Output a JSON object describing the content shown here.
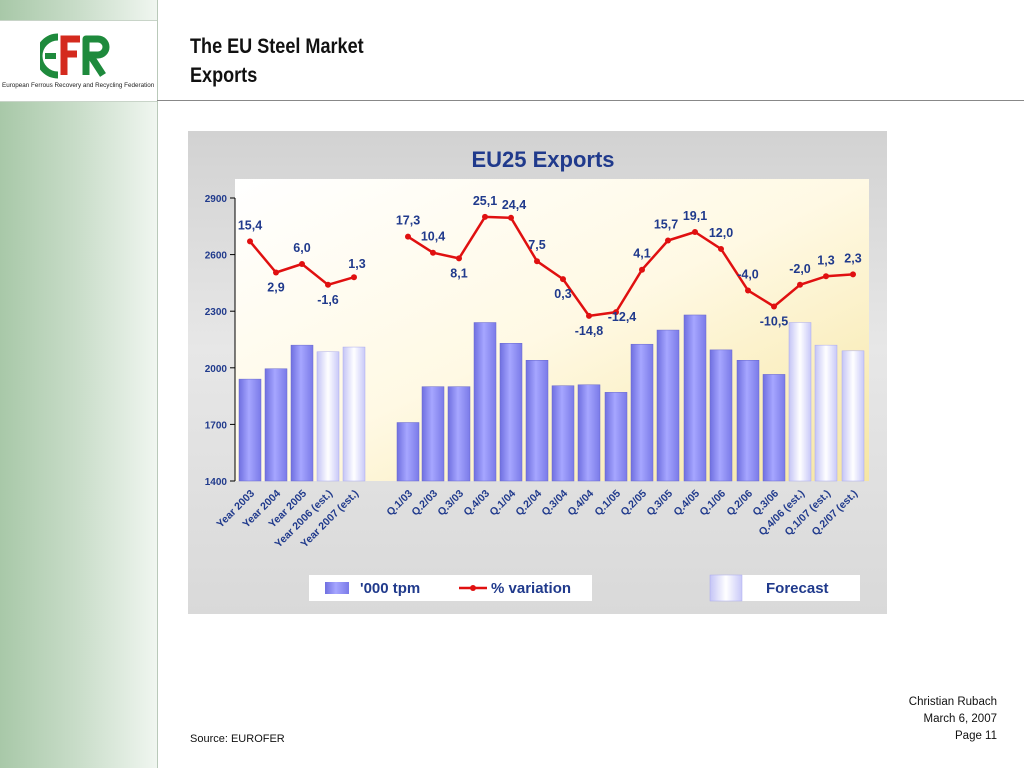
{
  "logo": {
    "mark": "EFR",
    "full_name": "European Ferrous Recovery and Recycling Federation",
    "colors": {
      "green": "#1e8a3c",
      "red": "#d42a1e"
    }
  },
  "slide": {
    "title_line1": "The EU Steel Market",
    "title_line2": "Exports"
  },
  "footer": {
    "source": "Source: EUROFER",
    "author": "Christian Rubach",
    "date": "March 6, 2007",
    "page": "Page 11"
  },
  "chart_data": {
    "type": "bar",
    "title": "EU25 Exports",
    "xlabel": "",
    "ylabel": "",
    "ylim": [
      1400,
      2900
    ],
    "yticks": [
      1400,
      1700,
      2000,
      2300,
      2600,
      2900
    ],
    "grid": false,
    "categories": [
      "Year 2003",
      "Year 2004",
      "Year 2005",
      "Year 2006 (est.)",
      "Year 2007 (est.)",
      "Q.1/03",
      "Q.2/03",
      "Q.3/03",
      "Q.4/03",
      "Q.1/04",
      "Q.2/04",
      "Q.3/04",
      "Q.4/04",
      "Q.1/05",
      "Q.2/05",
      "Q.3/05",
      "Q.4/05",
      "Q.1/06",
      "Q.2/06",
      "Q.3/06",
      "Q.4/06 (est.)",
      "Q.1/07 (est.)",
      "Q.2/07 (est.)"
    ],
    "series": [
      {
        "name": "'000 tpm",
        "type": "bar",
        "color": "#8c8cf0",
        "forecast_color": "#e6e6ff",
        "values": [
          1940,
          1995,
          2120,
          2085,
          2110,
          1710,
          1900,
          1900,
          2240,
          2130,
          2040,
          1905,
          1910,
          1870,
          2125,
          2200,
          2280,
          2095,
          2040,
          1965,
          2240,
          2120,
          2090
        ],
        "forecast": [
          false,
          false,
          false,
          true,
          true,
          false,
          false,
          false,
          false,
          false,
          false,
          false,
          false,
          false,
          false,
          false,
          false,
          false,
          false,
          false,
          true,
          true,
          true
        ]
      },
      {
        "name": "% variation",
        "type": "line",
        "color": "#e01010",
        "labels": [
          "15,4",
          "2,9",
          "6,0",
          "-1,6",
          "1,3",
          "17,3",
          "10,4",
          "8,1",
          "25,1",
          "24,4",
          "7,5",
          "0,3",
          "-14,8",
          "-12,4",
          "4,1",
          "15,7",
          "19,1",
          "12,0",
          "-4,0",
          "-10,5",
          "-2,0",
          "1,3",
          "2,3"
        ],
        "values": [
          15.4,
          2.9,
          6.0,
          -1.6,
          1.3,
          17.3,
          10.4,
          8.1,
          25.1,
          24.4,
          7.5,
          0.3,
          -14.8,
          -12.4,
          4.1,
          15.7,
          19.1,
          12.0,
          -4.0,
          -10.5,
          -2.0,
          1.3,
          2.3
        ],
        "plot_levels": [
          2670,
          2505,
          2550,
          2440,
          2480,
          2695,
          2610,
          2580,
          2800,
          2795,
          2565,
          2470,
          2275,
          2295,
          2520,
          2675,
          2720,
          2630,
          2410,
          2325,
          2440,
          2485,
          2495
        ],
        "segments": [
          [
            0,
            4
          ],
          [
            5,
            22
          ]
        ]
      }
    ],
    "legend": {
      "position": "bottom",
      "items": [
        "'000 tpm",
        "% variation",
        "Forecast"
      ]
    }
  }
}
